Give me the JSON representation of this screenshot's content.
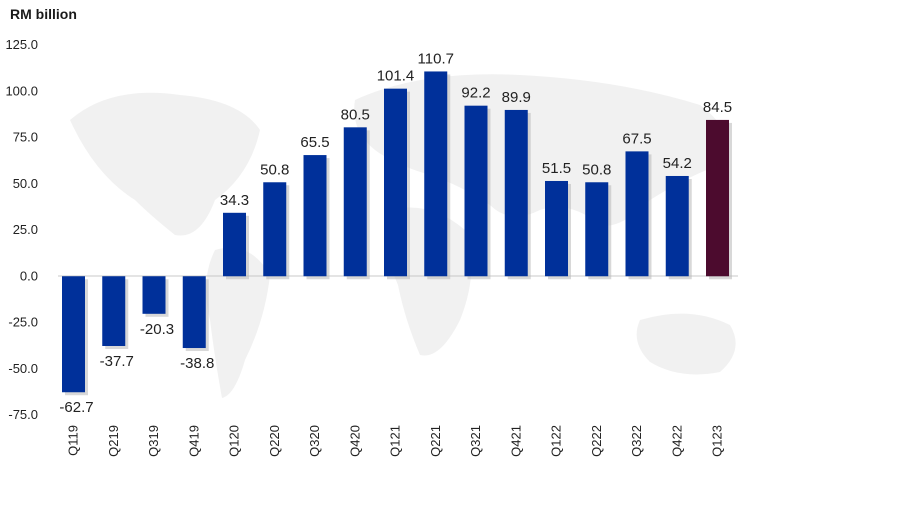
{
  "chart_data": {
    "type": "bar",
    "ylabel": "RM billion",
    "ylim": [
      -75,
      125
    ],
    "yticks": [
      "125.0",
      "100.0",
      "75.0",
      "50.0",
      "25.0",
      "0.0",
      "-25.0",
      "-50.0",
      "-75.0"
    ],
    "categories": [
      "Q119",
      "Q219",
      "Q319",
      "Q419",
      "Q120",
      "Q220",
      "Q320",
      "Q420",
      "Q121",
      "Q221",
      "Q321",
      "Q421",
      "Q122",
      "Q222",
      "Q322",
      "Q422",
      "Q123"
    ],
    "values": [
      -62.7,
      -37.7,
      -20.3,
      -38.8,
      34.3,
      50.8,
      65.5,
      80.5,
      101.4,
      110.7,
      92.2,
      89.9,
      51.5,
      50.8,
      67.5,
      54.2,
      84.5
    ],
    "labels": [
      "-62.7",
      "-37.7",
      "-20.3",
      "-38.8",
      "34.3",
      "50.8",
      "65.5",
      "80.5",
      "101.4",
      "110.7",
      "92.2",
      "89.9",
      "51.5",
      "50.8",
      "67.5",
      "54.2",
      "84.5"
    ],
    "colors": {
      "default": "#00309a",
      "highlight": "#4c0b2e",
      "highlight_index": 16
    },
    "grid": false,
    "legend": "none"
  }
}
